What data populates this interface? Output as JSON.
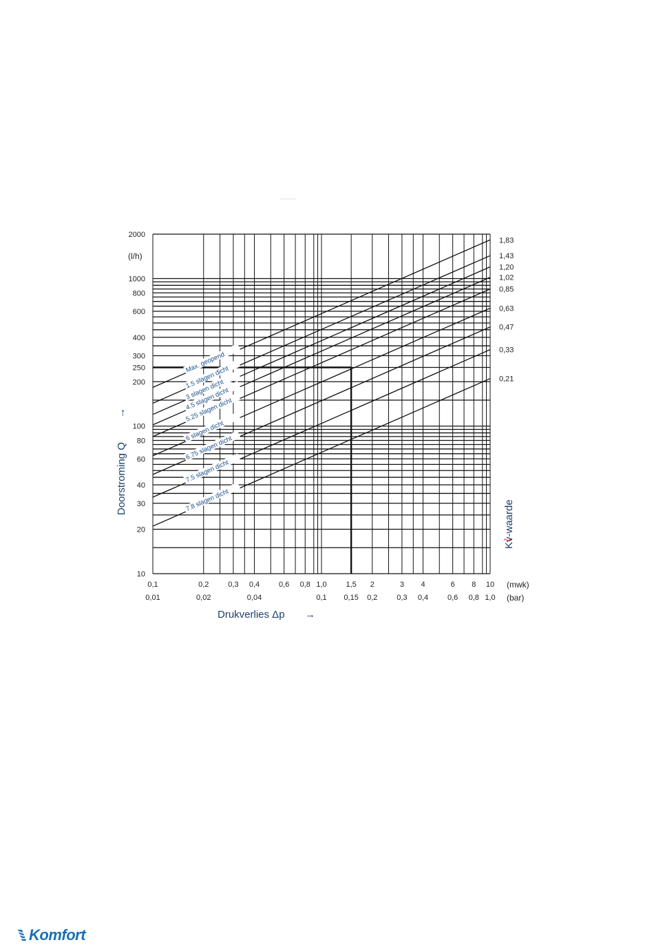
{
  "chart_data": {
    "type": "line",
    "title": "",
    "xlabel": "Drukverlies Δp",
    "xlabel_arrow": "→",
    "ylabel": "Doorstroming Q",
    "ylabel_arrow": "→",
    "y_unit": "(l/h)",
    "x_unit_top": "(mwk)",
    "x_unit_bottom": "(bar)",
    "right_axis_label": "Kv-waarde",
    "x_scale": "log",
    "y_scale": "log",
    "xlim": [
      0.1,
      10
    ],
    "ylim": [
      10,
      2000
    ],
    "grid": true,
    "x_ticks_mwk": [
      {
        "value": 0.1,
        "label": "0,1"
      },
      {
        "value": 0.2,
        "label": "0,2"
      },
      {
        "value": 0.3,
        "label": "0,3"
      },
      {
        "value": 0.4,
        "label": "0,4"
      },
      {
        "value": 0.6,
        "label": "0,6"
      },
      {
        "value": 0.8,
        "label": "0,8"
      },
      {
        "value": 1.0,
        "label": "1,0"
      },
      {
        "value": 1.5,
        "label": "1,5"
      },
      {
        "value": 2,
        "label": "2"
      },
      {
        "value": 3,
        "label": "3"
      },
      {
        "value": 4,
        "label": "4"
      },
      {
        "value": 6,
        "label": "6"
      },
      {
        "value": 8,
        "label": "8"
      },
      {
        "value": 10,
        "label": "10"
      }
    ],
    "x_ticks_bar": [
      {
        "value": 0.1,
        "label": "0,01"
      },
      {
        "value": 0.2,
        "label": "0,02"
      },
      {
        "value": 0.4,
        "label": "0,04"
      },
      {
        "value": 1.0,
        "label": "0,1"
      },
      {
        "value": 1.5,
        "label": "0,15"
      },
      {
        "value": 2,
        "label": "0,2"
      },
      {
        "value": 3,
        "label": "0,3"
      },
      {
        "value": 4,
        "label": "0,4"
      },
      {
        "value": 6,
        "label": "0,6"
      },
      {
        "value": 8,
        "label": "0,8"
      },
      {
        "value": 10,
        "label": "1,0"
      }
    ],
    "y_ticks": [
      {
        "value": 2000,
        "label": "2000"
      },
      {
        "value": 1000,
        "label": "1000"
      },
      {
        "value": 800,
        "label": "800"
      },
      {
        "value": 600,
        "label": "600"
      },
      {
        "value": 400,
        "label": "400"
      },
      {
        "value": 300,
        "label": "300"
      },
      {
        "value": 250,
        "label": "250"
      },
      {
        "value": 200,
        "label": "200"
      },
      {
        "value": 100,
        "label": "100"
      },
      {
        "value": 80,
        "label": "80"
      },
      {
        "value": 60,
        "label": "60"
      },
      {
        "value": 40,
        "label": "40"
      },
      {
        "value": 30,
        "label": "30"
      },
      {
        "value": 20,
        "label": "20"
      },
      {
        "value": 10,
        "label": "10"
      }
    ],
    "x_grid_mwk": [
      0.1,
      0.2,
      0.25,
      0.3,
      0.35,
      0.4,
      0.5,
      0.6,
      0.7,
      0.8,
      0.9,
      0.95,
      1.0,
      1.5,
      2,
      2.5,
      3,
      3.5,
      4,
      5,
      6,
      7,
      8,
      9,
      9.5,
      10
    ],
    "y_grid": [
      10,
      15,
      20,
      25,
      30,
      35,
      40,
      45,
      50,
      55,
      60,
      65,
      70,
      75,
      80,
      85,
      90,
      95,
      100,
      150,
      200,
      250,
      300,
      350,
      400,
      450,
      500,
      550,
      600,
      650,
      700,
      750,
      800,
      850,
      900,
      950,
      1000,
      2000
    ],
    "series": [
      {
        "name": "Max. geopend",
        "kv": "1,83",
        "kv_value": 1.83
      },
      {
        "name": "1.5 slagen dicht",
        "kv": "1,43",
        "kv_value": 1.43
      },
      {
        "name": "3 slagen dicht",
        "kv": "1,20",
        "kv_value": 1.2
      },
      {
        "name": "4.5 slagen dicht",
        "kv": "1,02",
        "kv_value": 1.02
      },
      {
        "name": "5.25 slagen dicht",
        "kv": "0,85",
        "kv_value": 0.85
      },
      {
        "name": "6 slagen dicht",
        "kv": "0,63",
        "kv_value": 0.63
      },
      {
        "name": "6.75 slagen dicht",
        "kv": "0,47",
        "kv_value": 0.47
      },
      {
        "name": "7.5 slagen dicht",
        "kv": "0,33",
        "kv_value": 0.33
      },
      {
        "name": "7.8 slagen dicht",
        "kv": "0,21",
        "kv_value": 0.21
      }
    ],
    "reading_example": {
      "flow_lh": 250,
      "pressure_mwk": 1.5
    }
  },
  "footer": {
    "logo_text": "Komfort"
  }
}
